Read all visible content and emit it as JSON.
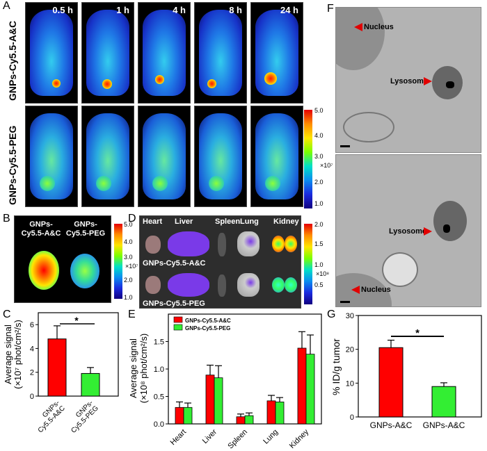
{
  "panels": {
    "A": "A",
    "B": "B",
    "C": "C",
    "D": "D",
    "E": "E",
    "F": "F",
    "G": "G"
  },
  "panelA": {
    "times": [
      "0.5 h",
      "1 h",
      "4 h",
      "8 h",
      "24 h"
    ],
    "row1_label": "GNPs-Cy5.5-A&C",
    "row2_label": "GNPs-Cy5.5-PEG",
    "colorbar_ticks": [
      "5.0",
      "4.0",
      "3.0",
      "2.0",
      "1.0"
    ],
    "colorbar_unit": "×10⁷"
  },
  "panelB": {
    "label1": "GNPs-Cy5.5-A&C",
    "label2": "GNPs-Cy5.5-PEG",
    "label1_line1": "GNPs-",
    "label1_line2": "Cy5.5-A&C",
    "label2_line1": "GNPs-",
    "label2_line2": "Cy5.5-PEG",
    "colorbar_ticks": [
      "5.0",
      "4.0",
      "3.0",
      "2.0",
      "1.0"
    ],
    "colorbar_unit": "×10⁷"
  },
  "panelD": {
    "organs": [
      "Heart",
      "Liver",
      "Spleen",
      "Lung",
      "Kidney"
    ],
    "row1_label": "GNPs-Cy5.5-A&C",
    "row2_label": "GNPs-Cy5.5-PEG",
    "colorbar_ticks": [
      "2.0",
      "1.5",
      "1.0",
      "0.5"
    ],
    "colorbar_unit": "×10⁸"
  },
  "panelF": {
    "nucleus": "Nucleus",
    "lysosome": "Lysosome"
  },
  "chart_data": [
    {
      "panel": "C",
      "type": "bar",
      "categories": [
        "GNPs-Cy5.5-A&C",
        "GNPs-Cy5.5-PEG"
      ],
      "values": [
        4.8,
        1.9
      ],
      "errors": [
        1.1,
        0.5
      ],
      "colors": [
        "#ff0000",
        "#33ee33"
      ],
      "ylabel_line1": "Average signal",
      "ylabel_line2": "(×10⁷ phot/cm²/s)",
      "ylim": [
        0,
        7
      ],
      "yticks": [
        0,
        2,
        4,
        6
      ],
      "significance": "*"
    },
    {
      "panel": "E",
      "type": "bar",
      "categories": [
        "Heart",
        "Liver",
        "Spleen",
        "Lung",
        "Kidney"
      ],
      "series": [
        {
          "name": "GNPs-Cy5.5-A&C",
          "values": [
            0.3,
            0.89,
            0.13,
            0.42,
            1.38
          ],
          "errors": [
            0.1,
            0.18,
            0.05,
            0.1,
            0.3
          ],
          "color": "#ff0000"
        },
        {
          "name": "GNPs-Cy5.5-PEG",
          "values": [
            0.3,
            0.84,
            0.15,
            0.4,
            1.27
          ],
          "errors": [
            0.08,
            0.22,
            0.05,
            0.08,
            0.35
          ],
          "color": "#33ee33"
        }
      ],
      "ylabel_line1": "Average signal",
      "ylabel_line2": "(×10⁸ phot/cm²/s)",
      "ylim": [
        0,
        2.0
      ],
      "yticks": [
        0.0,
        0.5,
        1.0,
        1.5
      ],
      "legend": "top-left"
    },
    {
      "panel": "G",
      "type": "bar",
      "categories": [
        "GNPs-A&C",
        "GNPs-A&C"
      ],
      "values": [
        20.5,
        9.0
      ],
      "errors": [
        2.2,
        1.1
      ],
      "colors": [
        "#ff0000",
        "#33ee33"
      ],
      "ylabel": "% ID/g tumor",
      "ylim": [
        0,
        30
      ],
      "yticks": [
        0,
        10,
        20,
        30
      ],
      "significance": "*"
    }
  ]
}
